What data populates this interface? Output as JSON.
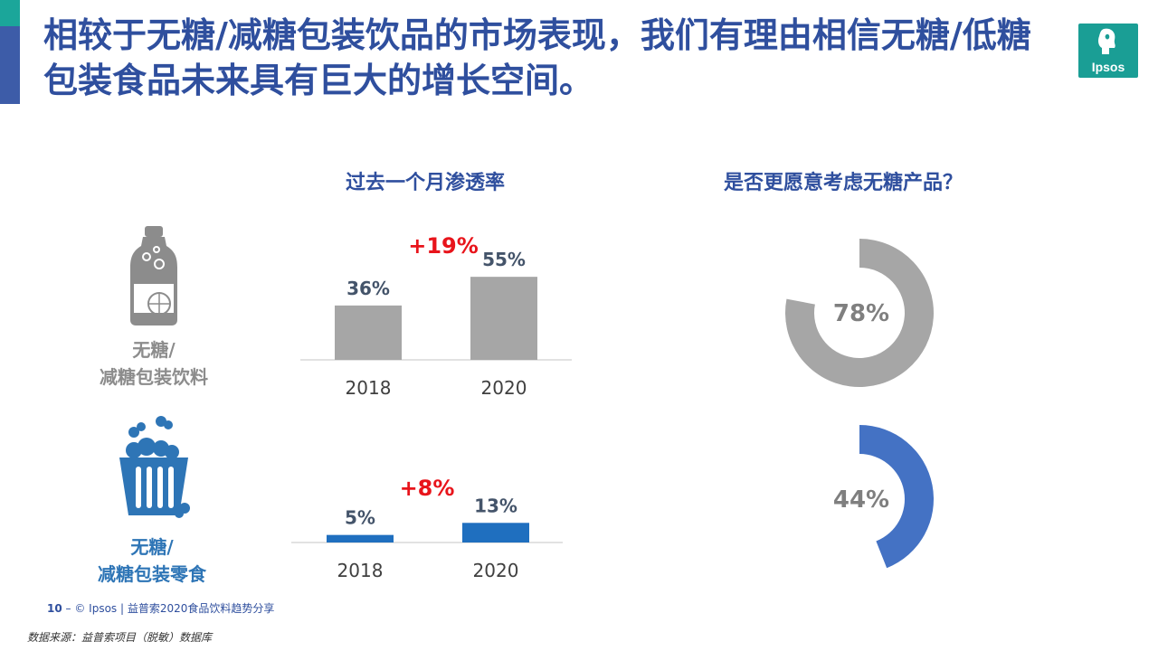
{
  "slide": {
    "title": "相较于无糖/减糖包装饮品的市场表现，我们有理由相信无糖/低糖包装食品未来具有巨大的增长空间。",
    "logo_text": "Ipsos",
    "footer_page_number": "10",
    "footer_text": "© Ipsos | 益普索2020食品饮料趋势分享",
    "source_note": "数据来源：益普索项目（脱敏）数据库"
  },
  "sections": {
    "penetration_title": "过去一个月渗透率",
    "preference_title": "是否更愿意考虑无糖产品？"
  },
  "rows": [
    {
      "label_line1": "无糖/",
      "label_line2": "减糖包装饮料",
      "icon": "bottle-icon",
      "color": "#a6a6a6",
      "label_color": "#8c8c8c"
    },
    {
      "label_line1": "无糖/",
      "label_line2": "减糖包装零食",
      "icon": "snack-box-icon",
      "color": "#1f6fbf",
      "label_color": "#2e75b6"
    }
  ],
  "chart_data": [
    {
      "type": "bar",
      "title": "过去一个月渗透率",
      "categories": [
        "2018",
        "2020"
      ],
      "values": [
        36,
        55
      ],
      "value_labels": [
        "36%",
        "55%"
      ],
      "change_label": "+19%",
      "color": "#a6a6a6",
      "ylim": [
        0,
        100
      ]
    },
    {
      "type": "bar",
      "categories": [
        "2018",
        "2020"
      ],
      "values": [
        5,
        13
      ],
      "value_labels": [
        "5%",
        "13%"
      ],
      "change_label": "+8%",
      "color": "#1f6fbf",
      "ylim": [
        0,
        100
      ]
    },
    {
      "type": "pie",
      "title": "是否更愿意考虑无糖产品？",
      "values": [
        78
      ],
      "value_label": "78%",
      "color": "#a6a6a6"
    },
    {
      "type": "pie",
      "values": [
        44
      ],
      "value_label": "44%",
      "color": "#4472c4"
    }
  ]
}
